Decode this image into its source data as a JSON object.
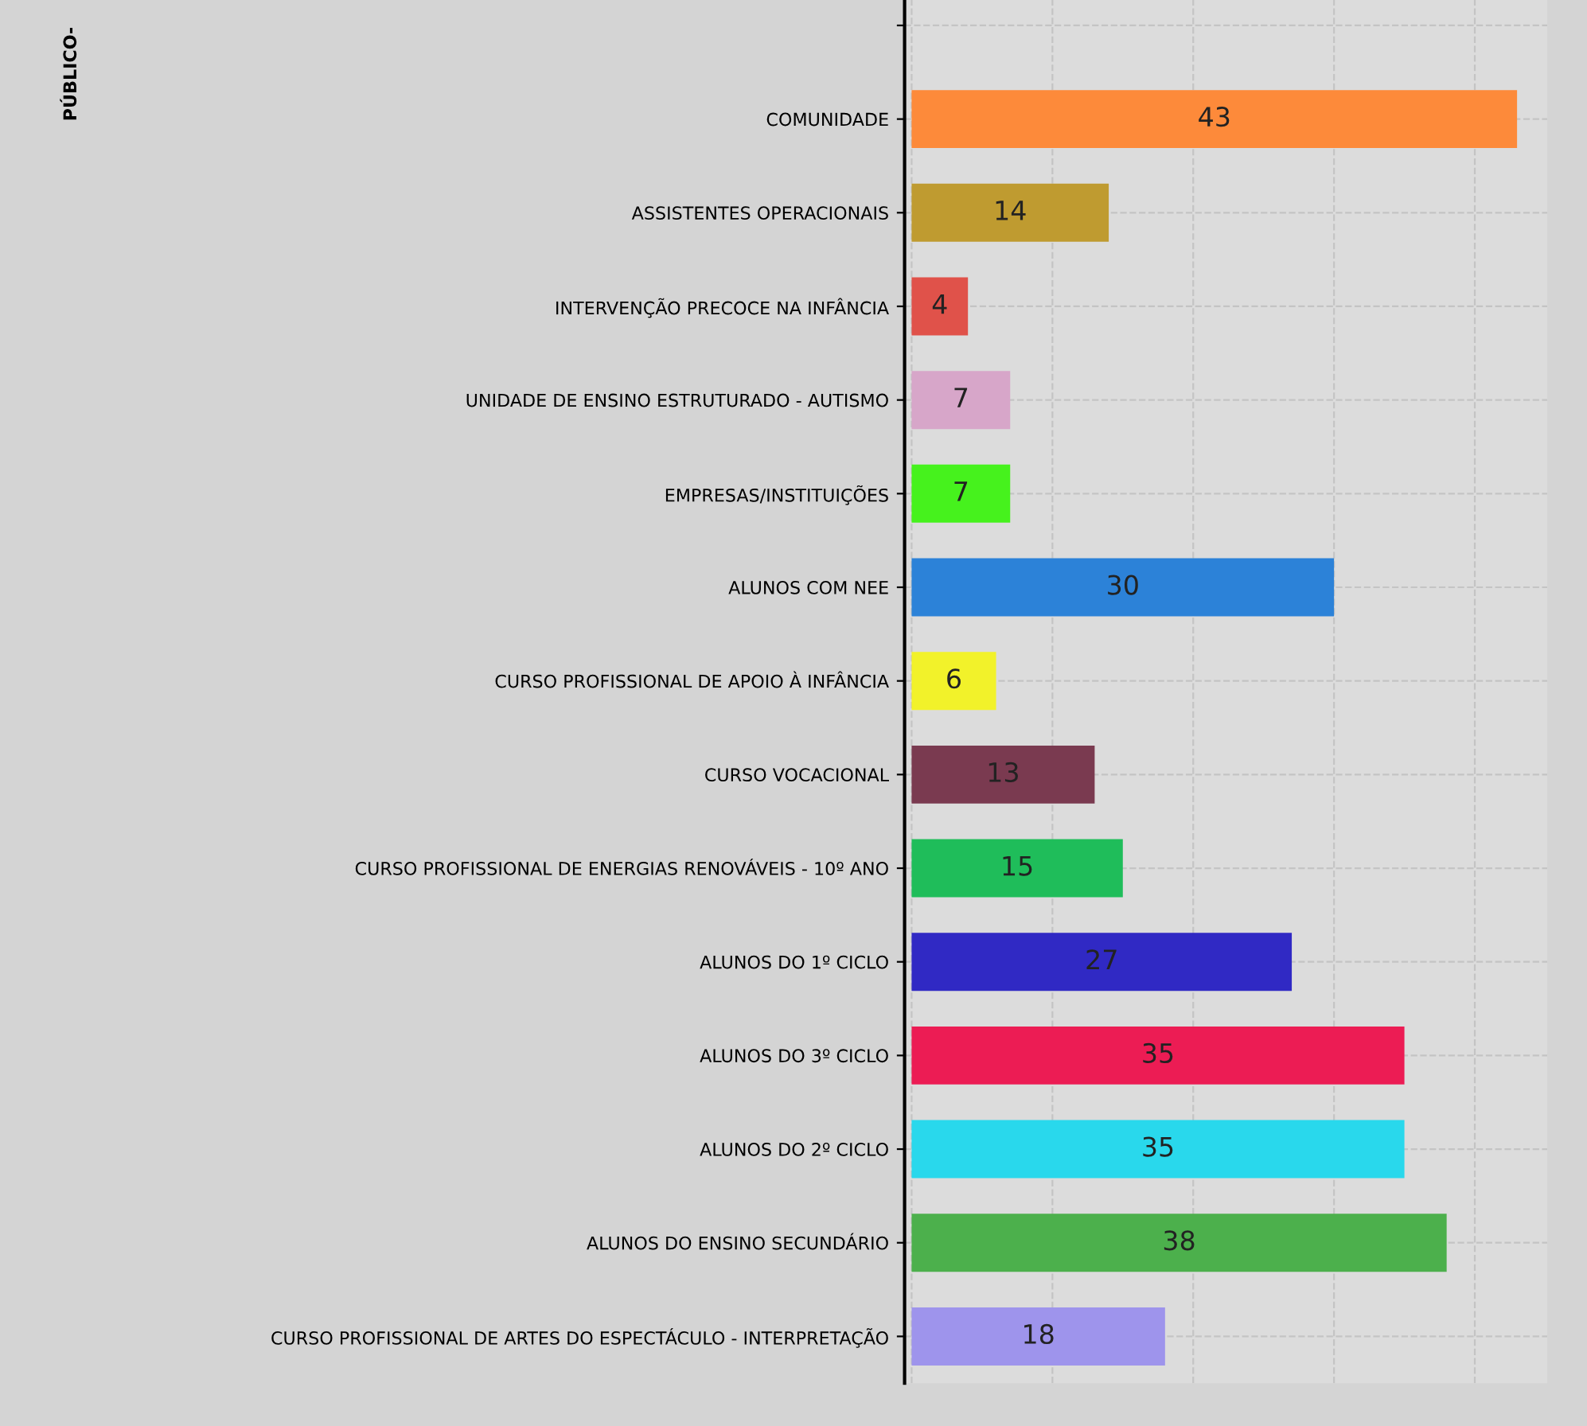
{
  "chart_data": {
    "type": "bar",
    "orientation": "horizontal",
    "annotations": [
      "PÚBLICO-"
    ],
    "categories": [
      null,
      "COMUNIDADE",
      "ASSISTENTES OPERACIONAIS",
      "INTERVENÇÃO PRECOCE NA INFÂNCIA",
      "UNIDADE DE ENSINO ESTRUTURADO - AUTISMO",
      "EMPRESAS/INSTITUIÇÕES",
      "ALUNOS COM NEE",
      "CURSO PROFISSIONAL DE APOIO À INFÂNCIA",
      "CURSO VOCACIONAL",
      "CURSO PROFISSIONAL DE ENERGIAS RENOVÁVEIS - 10º ANO",
      "ALUNOS DO 1º CICLO",
      "ALUNOS DO 3º CICLO",
      "ALUNOS DO 2º CICLO",
      "ALUNOS DO ENSINO SECUNDÁRIO",
      "CURSO PROFISSIONAL DE ARTES DO ESPECTÁCULO - INTERPRETAÇÃO"
    ],
    "values": [
      null,
      43,
      14,
      4,
      7,
      7,
      30,
      6,
      13,
      15,
      27,
      35,
      35,
      38,
      18
    ],
    "colors": [
      "#6a6ac8",
      "#fd8a3a",
      "#bf9b30",
      "#e0524a",
      "#d7a6c9",
      "#46f21d",
      "#2c82d8",
      "#f2f22a",
      "#7a3a50",
      "#1fbd5a",
      "#3029c4",
      "#ec1c54",
      "#29d8ec",
      "#4cb04c",
      "#9e94ec"
    ],
    "data_labels": true,
    "grid": true,
    "tick_labels": "y",
    "legend": false
  }
}
